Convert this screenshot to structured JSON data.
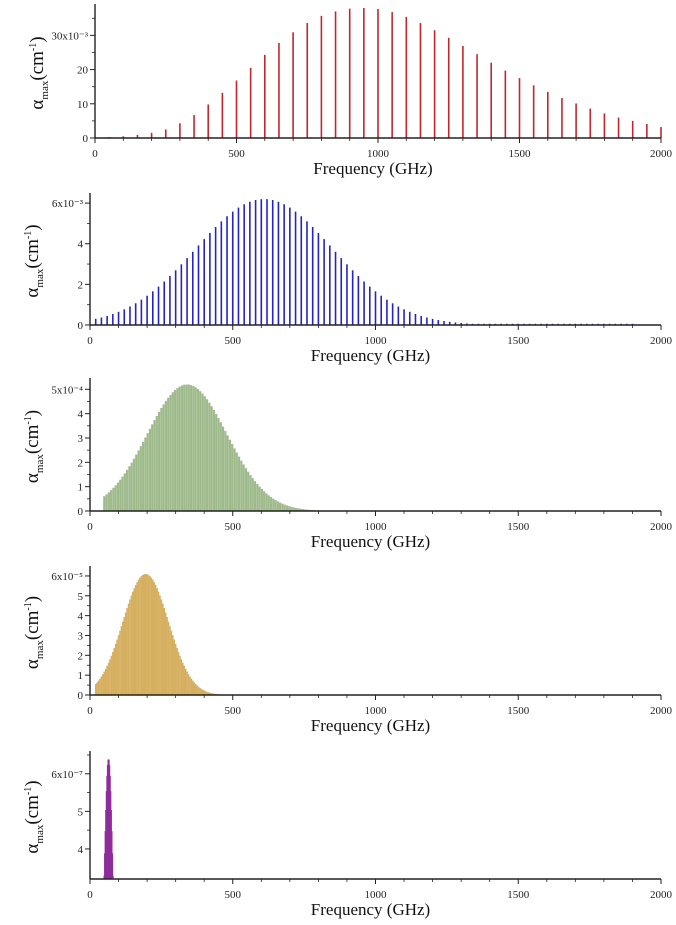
{
  "chart_data": [
    {
      "type": "bar",
      "bar_color": "#c0282d",
      "xlabel": "Frequency (GHz)",
      "ylabel": {
        "symbol": "α",
        "sub": "max",
        "unit": "(cm",
        "sup": "-1",
        "close": ")"
      },
      "xlim": [
        0,
        2000
      ],
      "ylim": [
        0,
        38
      ],
      "xticks": [
        0,
        500,
        1000,
        1500,
        2000
      ],
      "yticks": [
        0,
        10,
        20,
        30
      ],
      "ytick_labels": [
        "0",
        "10",
        "20",
        "30x10⁻³"
      ],
      "x": [
        50,
        100,
        150,
        200,
        250,
        300,
        350,
        400,
        450,
        500,
        550,
        600,
        650,
        700,
        750,
        800,
        850,
        900,
        950,
        1000,
        1050,
        1100,
        1150,
        1200,
        1250,
        1300,
        1350,
        1400,
        1450,
        1500,
        1550,
        1600,
        1650,
        1700,
        1750,
        1800,
        1850,
        1900,
        1950,
        2000
      ],
      "values": [
        0.3,
        0.5,
        0.9,
        1.5,
        2.5,
        4.3,
        6.7,
        9.8,
        13.2,
        16.8,
        20.5,
        24.3,
        27.8,
        30.9,
        33.6,
        35.7,
        37.0,
        37.8,
        38.0,
        37.7,
        36.8,
        35.4,
        33.6,
        31.5,
        29.3,
        26.9,
        24.5,
        22.0,
        19.7,
        17.5,
        15.4,
        13.5,
        11.7,
        10.1,
        8.6,
        7.2,
        6.0,
        5.0,
        4.1,
        3.2
      ]
    },
    {
      "type": "bar",
      "bar_color": "#2424c6",
      "xlabel": "Frequency (GHz)",
      "ylabel": {
        "symbol": "α",
        "sub": "max",
        "unit": "(cm",
        "sup": "-1",
        "close": ")"
      },
      "xlim": [
        0,
        2000
      ],
      "ylim": [
        0,
        6.3
      ],
      "xticks": [
        0,
        500,
        1000,
        1500,
        2000
      ],
      "yticks": [
        0,
        2,
        4,
        6
      ],
      "ytick_labels": [
        "0",
        "2",
        "4",
        "6x10⁻³"
      ],
      "x_start": 20,
      "x_step": 20,
      "x_end": 1900,
      "peak": 610,
      "sigma": 240,
      "amplitude": 6.2,
      "baseline": 0.06
    },
    {
      "type": "bar",
      "bar_color": "#9fba8c",
      "xlabel": "Frequency (GHz)",
      "ylabel": {
        "symbol": "α",
        "sub": "max",
        "unit": "(cm",
        "sup": "-1",
        "close": ")"
      },
      "xlim": [
        0,
        2000
      ],
      "ylim": [
        0,
        5.3
      ],
      "xticks": [
        0,
        500,
        1000,
        1500,
        2000
      ],
      "yticks": [
        0,
        1,
        2,
        3,
        4,
        5
      ],
      "ytick_labels": [
        "0",
        "1",
        "2",
        "3",
        "4",
        "5x10⁻⁴"
      ],
      "x_start": 50,
      "x_step": 8,
      "x_end": 860,
      "peak": 340,
      "sigma": 140,
      "amplitude": 5.2,
      "baseline": 0
    },
    {
      "type": "bar",
      "bar_color": "#d6b061",
      "xlabel": "Frequency (GHz)",
      "ylabel": {
        "symbol": "α",
        "sub": "max",
        "unit": "(cm",
        "sup": "-1",
        "close": ")"
      },
      "xlim": [
        0,
        2000
      ],
      "ylim": [
        0,
        6.3
      ],
      "xticks": [
        0,
        500,
        1000,
        1500,
        2000
      ],
      "yticks": [
        0,
        1,
        2,
        3,
        4,
        5,
        6
      ],
      "ytick_labels": [
        "0",
        "1",
        "2",
        "3",
        "4",
        "5",
        "6x10⁻⁵"
      ],
      "x_start": 20,
      "x_step": 5,
      "x_end": 480,
      "peak": 195,
      "sigma": 80,
      "amplitude": 6.1,
      "baseline": 0
    },
    {
      "type": "bar",
      "bar_color": "#8e2d9c",
      "xlabel": "Frequency (GHz)",
      "ylabel": {
        "symbol": "α",
        "sub": "max",
        "unit": "(cm",
        "sup": "-1",
        "close": ")"
      },
      "xlim": [
        0,
        2000
      ],
      "ylim": [
        3.2,
        6.5
      ],
      "xticks": [
        0,
        500,
        1000,
        1500,
        2000
      ],
      "yticks": [
        4,
        5,
        6
      ],
      "ytick_labels": [
        "4",
        "5",
        "6x10⁻⁷"
      ],
      "x_start": 38,
      "x_step": 2,
      "x_end": 92,
      "peak": 65,
      "sigma": 13,
      "amplitude": 6.4,
      "baseline": 0
    }
  ]
}
